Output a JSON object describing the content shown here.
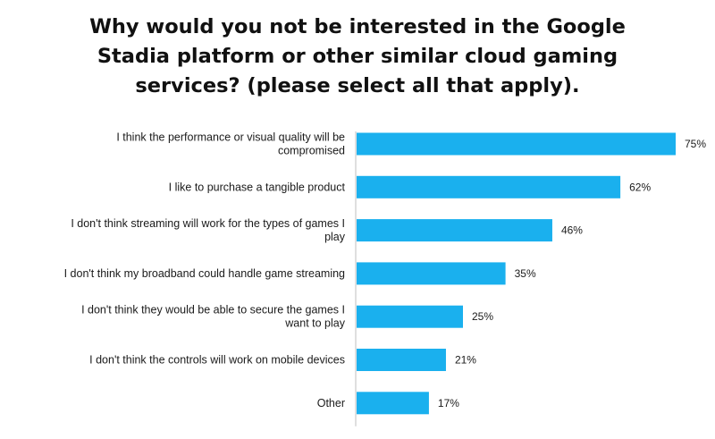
{
  "chart_data": {
    "type": "bar",
    "orientation": "horizontal",
    "title_lines": [
      "Why would you not be interested in the Google",
      "Stadia platform or other similar cloud gaming",
      "services? (please select all that apply)."
    ],
    "categories": [
      [
        "I think the performance or visual quality will be",
        "compromised"
      ],
      [
        "I like to purchase a tangible product"
      ],
      [
        "I don't think streaming will work for the types of games I",
        "play"
      ],
      [
        "I don't think my broadband could handle game streaming"
      ],
      [
        "I don't think they would be able to secure the games I",
        "want to play"
      ],
      [
        "I don't think the controls will work on mobile devices"
      ],
      [
        "Other"
      ]
    ],
    "values": [
      75,
      62,
      46,
      35,
      25,
      21,
      17
    ],
    "value_labels": [
      "75%",
      "62%",
      "46%",
      "35%",
      "25%",
      "21%",
      "17%"
    ],
    "unit": "%",
    "xlim": [
      0,
      75
    ],
    "bar_color": "#1ab0ee",
    "axis_color": "#bfbfbf",
    "grid": false,
    "legend": "none"
  }
}
